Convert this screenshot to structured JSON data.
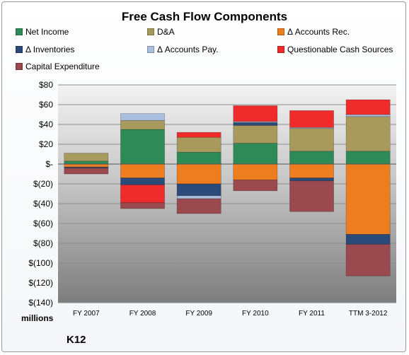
{
  "chart_data": {
    "type": "bar",
    "stacked": true,
    "title": "Free Cash Flow Components",
    "ylabel": "millions",
    "brand": "K12",
    "ylim": [
      -140,
      80
    ],
    "yticks": [
      80,
      60,
      40,
      20,
      0,
      -20,
      -40,
      -60,
      -80,
      -100,
      -120,
      -140
    ],
    "ytick_labels": [
      "$80",
      "$60",
      "$40",
      "$20",
      "$-",
      "$(20)",
      "$(40)",
      "$(60)",
      "$(80)",
      "$(100)",
      "$(120)",
      "$(140)"
    ],
    "grid": true,
    "legend_position": "top",
    "categories": [
      "FY 2007",
      "FY 2008",
      "FY 2009",
      "FY 2010",
      "FY 2011",
      "TTM 3-2012"
    ],
    "series": [
      {
        "name": "Net Income",
        "color": "#2e8b57",
        "values": [
          3,
          35,
          12,
          21,
          13,
          13
        ]
      },
      {
        "name": "D&A",
        "color": "#a89a5c",
        "values": [
          8,
          9,
          15,
          18,
          23,
          35
        ]
      },
      {
        "name": "Δ Accounts Rec.",
        "color": "#ee7d1f",
        "values": [
          -3,
          -14,
          -20,
          -16,
          -14,
          -71
        ]
      },
      {
        "name": "Δ Inventories",
        "color": "#2b4a7a",
        "values": [
          -1,
          -7,
          -12,
          3,
          -3,
          -10
        ]
      },
      {
        "name": "Δ Accounts Pay.",
        "color": "#a9bfdd",
        "values": [
          0,
          7,
          -3,
          1,
          1,
          2
        ]
      },
      {
        "name": "Questionable Cash Sources",
        "color": "#ef2b2b",
        "values": [
          0,
          -18,
          5,
          16,
          17,
          15
        ]
      },
      {
        "name": "Capital Expenditure",
        "color": "#9a4a4f",
        "values": [
          -6,
          -6,
          -15,
          -11,
          -31,
          -32
        ]
      }
    ]
  }
}
